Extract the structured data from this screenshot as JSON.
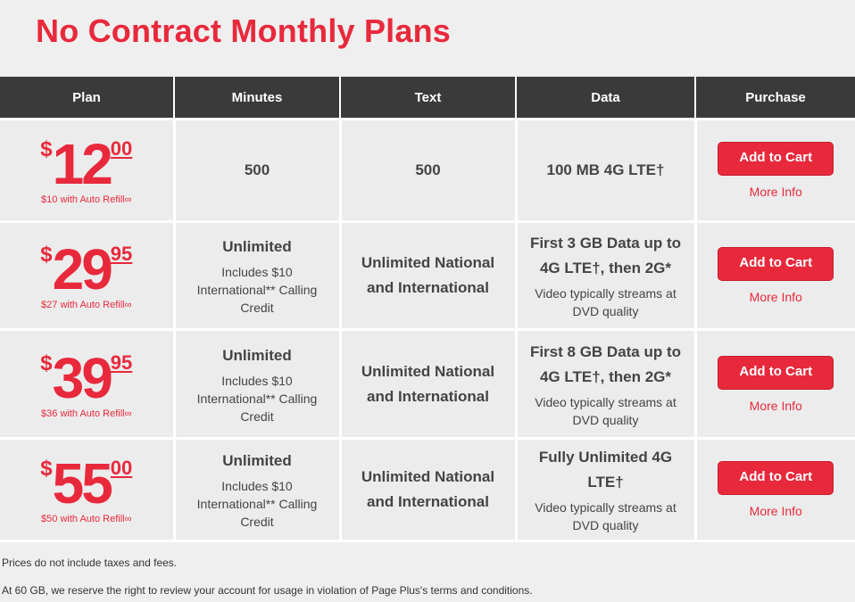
{
  "title": "No Contract Monthly Plans",
  "headers": [
    "Plan",
    "Minutes",
    "Text",
    "Data",
    "Purchase"
  ],
  "rows": [
    {
      "dollar": "$",
      "whole": "12",
      "cents": "00",
      "auto": "$10 with Auto Refill∞",
      "minutes": "500",
      "minutes_sub": "",
      "text": "500",
      "data": "100 MB 4G LTE†",
      "data_sub": "",
      "cart": "Add to Cart",
      "more": "More Info"
    },
    {
      "dollar": "$",
      "whole": "29",
      "cents": "95",
      "auto": "$27 with Auto Refill∞",
      "minutes": "Unlimited",
      "minutes_sub": "Includes $10 International** Calling Credit",
      "text": "Unlimited National and International",
      "data": "First 3 GB Data up to 4G LTE†, then 2G*",
      "data_sub": "Video typically streams at DVD quality",
      "cart": "Add to Cart",
      "more": "More Info"
    },
    {
      "dollar": "$",
      "whole": "39",
      "cents": "95",
      "auto": "$36 with Auto Refill∞",
      "minutes": "Unlimited",
      "minutes_sub": "Includes $10 International** Calling Credit",
      "text": "Unlimited National and International",
      "data": "First 8 GB Data up to 4G LTE†, then 2G*",
      "data_sub": "Video typically streams at DVD quality",
      "cart": "Add to Cart",
      "more": "More Info"
    },
    {
      "dollar": "$",
      "whole": "55",
      "cents": "00",
      "auto": "$50 with Auto Refill∞",
      "minutes": "Unlimited",
      "minutes_sub": "Includes $10 International** Calling Credit",
      "text": "Unlimited National and International",
      "data": "Fully Unlimited 4G LTE†",
      "data_sub": "Video typically streams at DVD quality",
      "cart": "Add to Cart",
      "more": "More Info"
    }
  ],
  "footnotes": [
    "Prices do not include taxes and fees.",
    "At 60 GB, we reserve the right to review your account for usage in violation of Page Plus's terms and conditions."
  ],
  "colors": {
    "accent": "#e8293c",
    "header_bg": "#3a3a3a"
  }
}
